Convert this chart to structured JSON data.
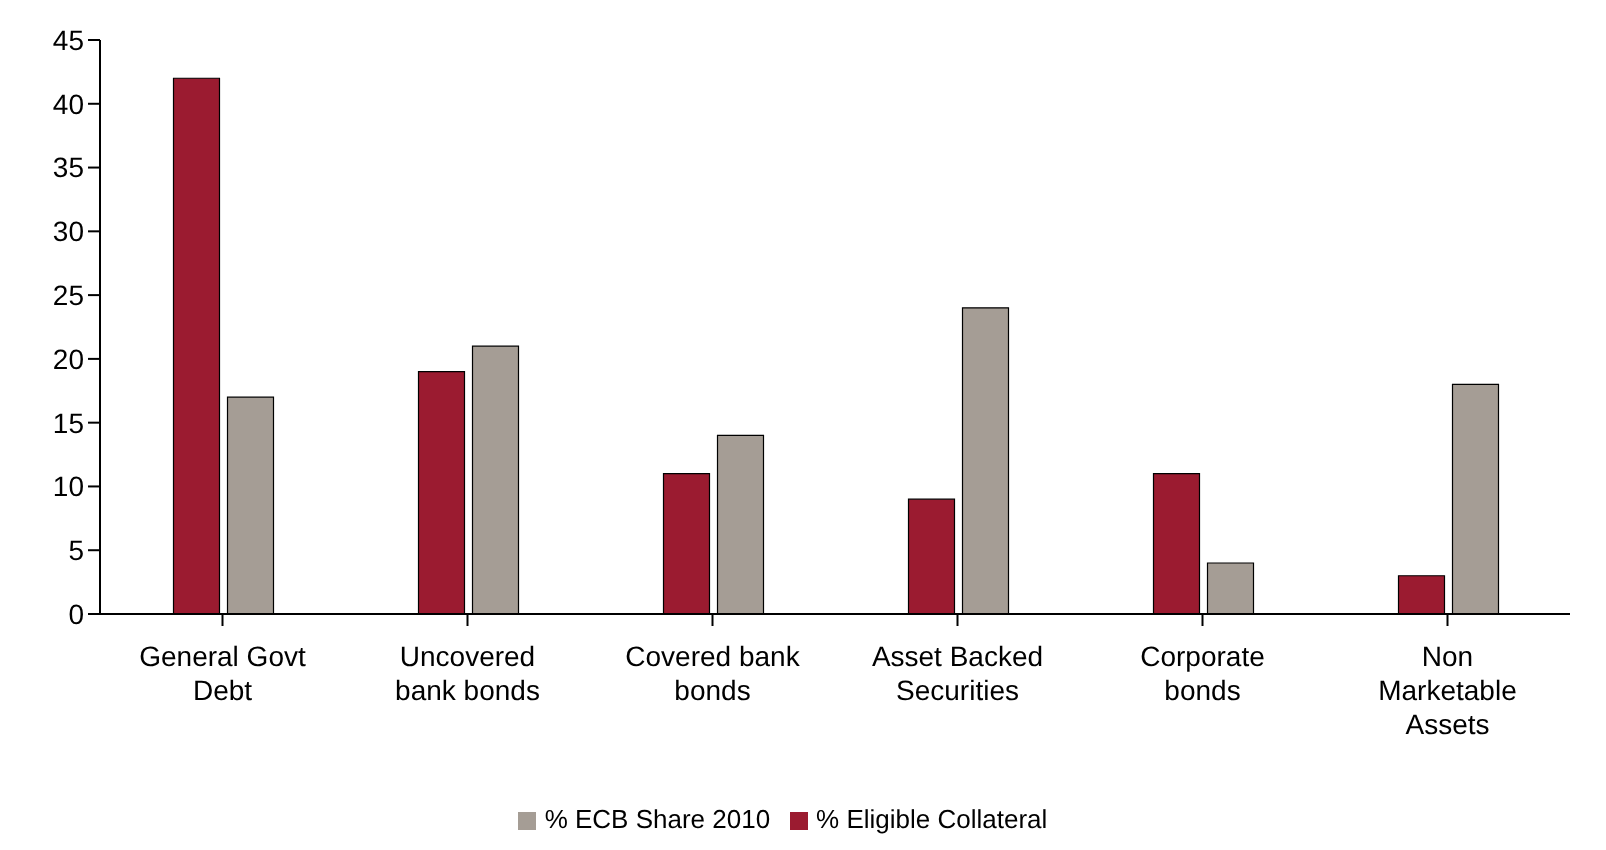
{
  "chart_data": {
    "type": "bar",
    "categories": [
      "General Govt Debt",
      "Uncovered bank bonds",
      "Covered bank bonds",
      "Asset Backed Securities",
      "Corporate bonds",
      "Non Marketable Assets"
    ],
    "series": [
      {
        "name": "% Eligible Collateral",
        "color": "#9b1b30",
        "values": [
          42,
          19,
          11,
          9,
          11,
          3
        ]
      },
      {
        "name": "% ECB Share 2010",
        "color": "#a59d95",
        "values": [
          17,
          21,
          14,
          24,
          4,
          18
        ]
      }
    ],
    "ylim": [
      0,
      45
    ],
    "yticks": [
      0,
      5,
      10,
      15,
      20,
      25,
      30,
      35,
      40,
      45
    ],
    "grid": false,
    "legend": "bottom"
  }
}
